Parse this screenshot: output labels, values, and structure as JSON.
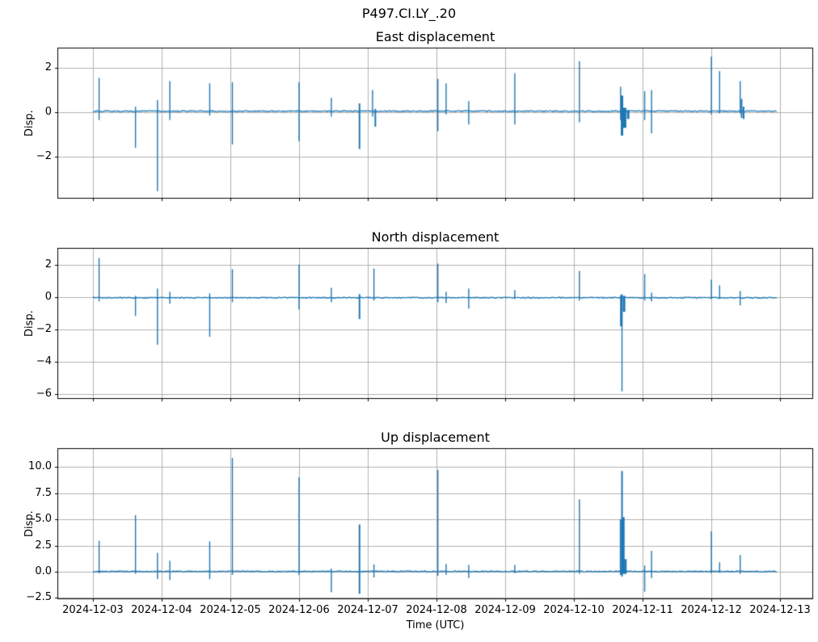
{
  "figure": {
    "suptitle": "P497.CI.LY_.20",
    "xlabel": "Time (UTC)",
    "line_color": "#1f77b4",
    "grid_color": "#b0b0b0",
    "spine_color": "#000000",
    "background": "#ffffff"
  },
  "x_axis": {
    "tick_labels": [
      "2024-12-03",
      "2024-12-04",
      "2024-12-05",
      "2024-12-06",
      "2024-12-07",
      "2024-12-08",
      "2024-12-09",
      "2024-12-10",
      "2024-12-11",
      "2024-12-12",
      "2024-12-13"
    ],
    "lim_days": [
      -0.505,
      10.47
    ],
    "data_start_day": 0.0,
    "data_end_day": 9.96
  },
  "chart_data": [
    {
      "type": "line",
      "title": "East displacement",
      "ylabel": "Disp.",
      "ylim": [
        -3.85,
        2.87
      ],
      "yticks": [
        -2,
        0,
        2
      ],
      "ytick_labels": [
        "−2",
        "0",
        "2"
      ],
      "grid": true,
      "baseline": 0.05,
      "spikes": [
        {
          "t": 0.09,
          "hi": 1.55,
          "lo": -0.35
        },
        {
          "t": 0.62,
          "hi": 0.25,
          "lo": -1.6
        },
        {
          "t": 0.94,
          "hi": 0.55,
          "lo": -3.55
        },
        {
          "t": 1.12,
          "hi": 1.4,
          "lo": -0.35
        },
        {
          "t": 1.7,
          "hi": 1.3,
          "lo": -0.15
        },
        {
          "t": 2.03,
          "hi": 1.35,
          "lo": -1.45
        },
        {
          "t": 3.0,
          "hi": 1.35,
          "lo": -1.3
        },
        {
          "t": 3.47,
          "hi": 0.65,
          "lo": -0.2
        },
        {
          "t": 3.88,
          "hi": 0.4,
          "lo": -1.65,
          "w": 2
        },
        {
          "t": 4.07,
          "hi": 1.0,
          "lo": -0.2
        },
        {
          "t": 4.11,
          "hi": 0.15,
          "lo": -0.65,
          "w": 2
        },
        {
          "t": 5.02,
          "hi": 1.5,
          "lo": -0.85
        },
        {
          "t": 5.14,
          "hi": 1.3,
          "lo": -0.1
        },
        {
          "t": 5.47,
          "hi": 0.5,
          "lo": -0.55
        },
        {
          "t": 6.14,
          "hi": 1.75,
          "lo": -0.55
        },
        {
          "t": 7.08,
          "hi": 2.3,
          "lo": -0.45
        },
        {
          "t": 7.68,
          "hi": 1.15,
          "lo": -0.35
        },
        {
          "t": 7.7,
          "hi": 0.75,
          "lo": -1.05,
          "w": 3
        },
        {
          "t": 7.74,
          "hi": 0.2,
          "lo": -0.7,
          "w": 4
        },
        {
          "t": 7.79,
          "hi": 0.1,
          "lo": -0.3,
          "w": 3
        },
        {
          "t": 8.03,
          "hi": 0.95,
          "lo": -0.35
        },
        {
          "t": 8.13,
          "hi": 1.0,
          "lo": -0.95
        },
        {
          "t": 9.0,
          "hi": 2.5,
          "lo": -0.1
        },
        {
          "t": 9.12,
          "hi": 1.85,
          "lo": -0.05
        },
        {
          "t": 9.42,
          "hi": 1.4,
          "lo": -0.05
        },
        {
          "t": 9.44,
          "hi": 0.6,
          "lo": -0.25,
          "w": 2
        },
        {
          "t": 9.47,
          "hi": 0.25,
          "lo": -0.3,
          "w": 2
        }
      ]
    },
    {
      "type": "line",
      "title": "North displacement",
      "ylabel": "Disp.",
      "ylim": [
        -6.27,
        3.03
      ],
      "yticks": [
        -6,
        -4,
        -2,
        0,
        2
      ],
      "ytick_labels": [
        "−6",
        "−4",
        "−2",
        "0",
        "2"
      ],
      "grid": true,
      "baseline": -0.02,
      "spikes": [
        {
          "t": 0.09,
          "hi": 2.45,
          "lo": -0.25
        },
        {
          "t": 0.62,
          "hi": 0.1,
          "lo": -1.15
        },
        {
          "t": 0.94,
          "hi": 0.55,
          "lo": -2.95
        },
        {
          "t": 1.12,
          "hi": 0.35,
          "lo": -0.4
        },
        {
          "t": 1.7,
          "hi": 0.25,
          "lo": -2.45
        },
        {
          "t": 2.03,
          "hi": 1.75,
          "lo": -0.3
        },
        {
          "t": 3.0,
          "hi": 2.05,
          "lo": -0.75
        },
        {
          "t": 3.47,
          "hi": 0.6,
          "lo": -0.3
        },
        {
          "t": 3.88,
          "hi": 0.2,
          "lo": -1.35,
          "w": 2
        },
        {
          "t": 4.09,
          "hi": 1.8,
          "lo": -0.2
        },
        {
          "t": 5.02,
          "hi": 2.1,
          "lo": -0.3
        },
        {
          "t": 5.14,
          "hi": 0.35,
          "lo": -0.35
        },
        {
          "t": 5.47,
          "hi": 0.55,
          "lo": -0.7
        },
        {
          "t": 6.14,
          "hi": 0.45,
          "lo": -0.1
        },
        {
          "t": 7.08,
          "hi": 1.65,
          "lo": -0.2
        },
        {
          "t": 7.69,
          "hi": 0.15,
          "lo": -1.8,
          "w": 3
        },
        {
          "t": 7.7,
          "hi": 0.2,
          "lo": -5.85
        },
        {
          "t": 7.73,
          "hi": 0.1,
          "lo": -0.9,
          "w": 3
        },
        {
          "t": 8.03,
          "hi": 1.45,
          "lo": -0.2
        },
        {
          "t": 8.13,
          "hi": 0.3,
          "lo": -0.25
        },
        {
          "t": 9.0,
          "hi": 1.1,
          "lo": -0.1
        },
        {
          "t": 9.12,
          "hi": 0.75,
          "lo": -0.1
        },
        {
          "t": 9.42,
          "hi": 0.4,
          "lo": -0.5
        }
      ]
    },
    {
      "type": "line",
      "title": "Up displacement",
      "ylabel": "Disp.",
      "ylim": [
        -2.54,
        11.7
      ],
      "yticks": [
        -2.5,
        0,
        2.5,
        5,
        7.5,
        10
      ],
      "ytick_labels": [
        "−2.5",
        "0.0",
        "2.5",
        "5.0",
        "7.5",
        "10.0"
      ],
      "grid": true,
      "baseline": 0.03,
      "spikes": [
        {
          "t": 0.09,
          "hi": 2.95,
          "lo": -0.15
        },
        {
          "t": 0.62,
          "hi": 5.4,
          "lo": -0.2
        },
        {
          "t": 0.94,
          "hi": 1.8,
          "lo": -0.7
        },
        {
          "t": 1.12,
          "hi": 1.05,
          "lo": -0.8
        },
        {
          "t": 1.7,
          "hi": 2.9,
          "lo": -0.7
        },
        {
          "t": 2.03,
          "hi": 10.85,
          "lo": -0.3
        },
        {
          "t": 3.0,
          "hi": 9.0,
          "lo": -0.3
        },
        {
          "t": 3.47,
          "hi": 0.3,
          "lo": -1.95
        },
        {
          "t": 3.88,
          "hi": 4.5,
          "lo": -2.1,
          "w": 2
        },
        {
          "t": 4.09,
          "hi": 0.7,
          "lo": -0.55
        },
        {
          "t": 5.02,
          "hi": 9.7,
          "lo": -0.4
        },
        {
          "t": 5.14,
          "hi": 0.75,
          "lo": -0.3
        },
        {
          "t": 5.47,
          "hi": 0.65,
          "lo": -0.6
        },
        {
          "t": 6.14,
          "hi": 0.65,
          "lo": -0.15
        },
        {
          "t": 7.08,
          "hi": 6.9,
          "lo": -0.2
        },
        {
          "t": 7.68,
          "hi": 5.0,
          "lo": -0.3,
          "w": 2
        },
        {
          "t": 7.7,
          "hi": 9.6,
          "lo": -0.45,
          "w": 2
        },
        {
          "t": 7.72,
          "hi": 5.2,
          "lo": -0.2,
          "w": 3
        },
        {
          "t": 7.75,
          "hi": 1.2,
          "lo": -0.2,
          "w": 3
        },
        {
          "t": 8.03,
          "hi": 0.6,
          "lo": -1.9
        },
        {
          "t": 8.13,
          "hi": 2.0,
          "lo": -0.6
        },
        {
          "t": 9.0,
          "hi": 3.85,
          "lo": -0.15
        },
        {
          "t": 9.12,
          "hi": 0.9,
          "lo": -0.1
        },
        {
          "t": 9.42,
          "hi": 1.6,
          "lo": -0.2
        }
      ]
    }
  ]
}
